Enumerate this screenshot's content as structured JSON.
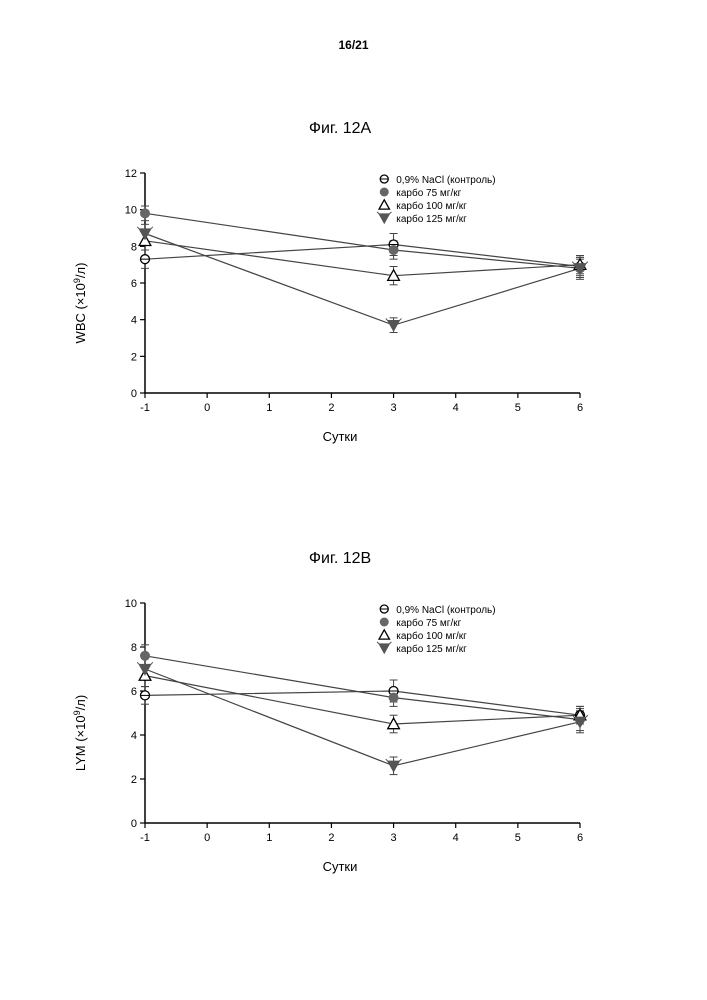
{
  "page_number": "16/21",
  "chartA": {
    "title": "Фиг. 12А",
    "type": "line",
    "ylabel_main": "WBC",
    "ylabel_unit_prefix": " (×10",
    "ylabel_unit_exp": "9",
    "ylabel_unit_suffix": "/л)",
    "xlabel": "Сутки",
    "ylim": [
      0,
      12
    ],
    "ytick_step": 2,
    "xlim": [
      -1,
      6
    ],
    "xticks": [
      -1,
      0,
      1,
      2,
      3,
      4,
      5,
      6
    ],
    "legend": [
      {
        "label": "0,9% NaCl (контроль)",
        "marker": "circle-open",
        "color": "#000000"
      },
      {
        "label": "карбо 75 мг/кг",
        "marker": "circle-filled",
        "color": "#666666"
      },
      {
        "label": "карбо 100 мг/кг",
        "marker": "triangle-open",
        "color": "#000000"
      },
      {
        "label": "карбо 125 мг/кг",
        "marker": "triangle-down-filled",
        "color": "#555555"
      }
    ],
    "series": [
      {
        "marker": "circle-open",
        "color": "#000000",
        "x": [
          -1,
          3,
          6
        ],
        "y": [
          7.3,
          8.1,
          6.9
        ],
        "err": [
          0.5,
          0.6,
          0.5
        ]
      },
      {
        "marker": "circle-filled",
        "color": "#666666",
        "x": [
          -1,
          3,
          6
        ],
        "y": [
          9.8,
          7.8,
          6.8
        ],
        "err": [
          0.4,
          0.5,
          0.6
        ]
      },
      {
        "marker": "triangle-open",
        "color": "#000000",
        "x": [
          -1,
          3,
          6
        ],
        "y": [
          8.3,
          6.4,
          7.0
        ],
        "err": [
          0.5,
          0.5,
          0.5
        ]
      },
      {
        "marker": "triangle-down-filled",
        "color": "#555555",
        "x": [
          -1,
          3,
          6
        ],
        "y": [
          8.7,
          3.7,
          6.8
        ],
        "err": [
          0.5,
          0.4,
          0.5
        ]
      }
    ],
    "line_color": "#444444",
    "axis_color": "#000000",
    "tick_fontsize": 11,
    "title_fontsize": 16,
    "label_fontsize": 13,
    "legend_fontsize": 10,
    "background": "#ffffff"
  },
  "chartB": {
    "title": "Фиг. 12В",
    "type": "line",
    "ylabel_main": "LYM",
    "ylabel_unit_prefix": " (×10",
    "ylabel_unit_exp": "9",
    "ylabel_unit_suffix": "/л)",
    "xlabel": "Сутки",
    "ylim": [
      0,
      10
    ],
    "ytick_step": 2,
    "xlim": [
      -1,
      6
    ],
    "xticks": [
      -1,
      0,
      1,
      2,
      3,
      4,
      5,
      6
    ],
    "legend": [
      {
        "label": "0,9% NaCl (контроль)",
        "marker": "circle-open",
        "color": "#000000"
      },
      {
        "label": "карбо 75 мг/кг",
        "marker": "circle-filled",
        "color": "#666666"
      },
      {
        "label": "карбо 100 мг/кг",
        "marker": "triangle-open",
        "color": "#000000"
      },
      {
        "label": "карбо 125 мг/кг",
        "marker": "triangle-down-filled",
        "color": "#555555"
      }
    ],
    "series": [
      {
        "marker": "circle-open",
        "color": "#000000",
        "x": [
          -1,
          3,
          6
        ],
        "y": [
          5.8,
          6.0,
          4.9
        ],
        "err": [
          0.4,
          0.5,
          0.4
        ]
      },
      {
        "marker": "circle-filled",
        "color": "#666666",
        "x": [
          -1,
          3,
          6
        ],
        "y": [
          7.6,
          5.7,
          4.7
        ],
        "err": [
          0.5,
          0.4,
          0.5
        ]
      },
      {
        "marker": "triangle-open",
        "color": "#000000",
        "x": [
          -1,
          3,
          6
        ],
        "y": [
          6.7,
          4.5,
          4.9
        ],
        "err": [
          0.5,
          0.4,
          0.4
        ]
      },
      {
        "marker": "triangle-down-filled",
        "color": "#555555",
        "x": [
          -1,
          3,
          6
        ],
        "y": [
          7.0,
          2.6,
          4.6
        ],
        "err": [
          0.5,
          0.4,
          0.5
        ]
      }
    ],
    "line_color": "#444444",
    "axis_color": "#000000",
    "tick_fontsize": 11,
    "title_fontsize": 16,
    "label_fontsize": 13,
    "legend_fontsize": 10,
    "background": "#ffffff"
  }
}
